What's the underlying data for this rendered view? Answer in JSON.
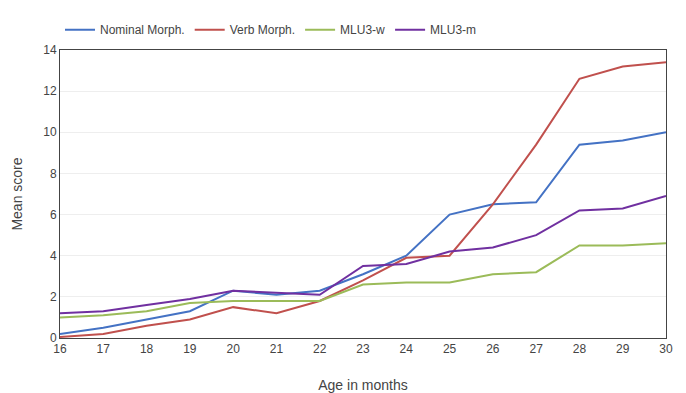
{
  "chart_data": {
    "type": "line",
    "x": [
      16,
      17,
      18,
      19,
      20,
      21,
      22,
      23,
      24,
      25,
      26,
      27,
      28,
      29,
      30
    ],
    "series": [
      {
        "name": "Nominal Morph.",
        "color": "#4472C4",
        "values": [
          0.2,
          0.5,
          0.9,
          1.3,
          2.3,
          2.1,
          2.3,
          3.1,
          4.0,
          6.0,
          6.5,
          6.6,
          9.4,
          9.6,
          10.0
        ]
      },
      {
        "name": "Verb Morph.",
        "color": "#C0504D",
        "values": [
          0.05,
          0.2,
          0.6,
          0.9,
          1.5,
          1.2,
          1.8,
          2.8,
          3.9,
          4.0,
          6.5,
          9.4,
          12.6,
          13.2,
          13.4
        ]
      },
      {
        "name": "MLU3-w",
        "color": "#9BBB59",
        "values": [
          1.0,
          1.1,
          1.3,
          1.7,
          1.8,
          1.8,
          1.8,
          2.6,
          2.7,
          2.7,
          3.1,
          3.2,
          4.5,
          4.5,
          4.6
        ]
      },
      {
        "name": "MLU3-m",
        "color": "#7030A0",
        "values": [
          1.2,
          1.3,
          1.6,
          1.9,
          2.3,
          2.2,
          2.1,
          3.5,
          3.6,
          4.2,
          4.4,
          5.0,
          6.2,
          6.3,
          6.9
        ]
      }
    ],
    "xlabel": "Age in months",
    "ylabel": "Mean score",
    "xlim": [
      16,
      30
    ],
    "ylim": [
      0,
      14
    ],
    "xticks": [
      16,
      17,
      18,
      19,
      20,
      21,
      22,
      23,
      24,
      25,
      26,
      27,
      28,
      29,
      30
    ],
    "yticks": [
      0,
      2,
      4,
      6,
      8,
      10,
      12,
      14
    ],
    "grid": "y",
    "legend": "top"
  }
}
